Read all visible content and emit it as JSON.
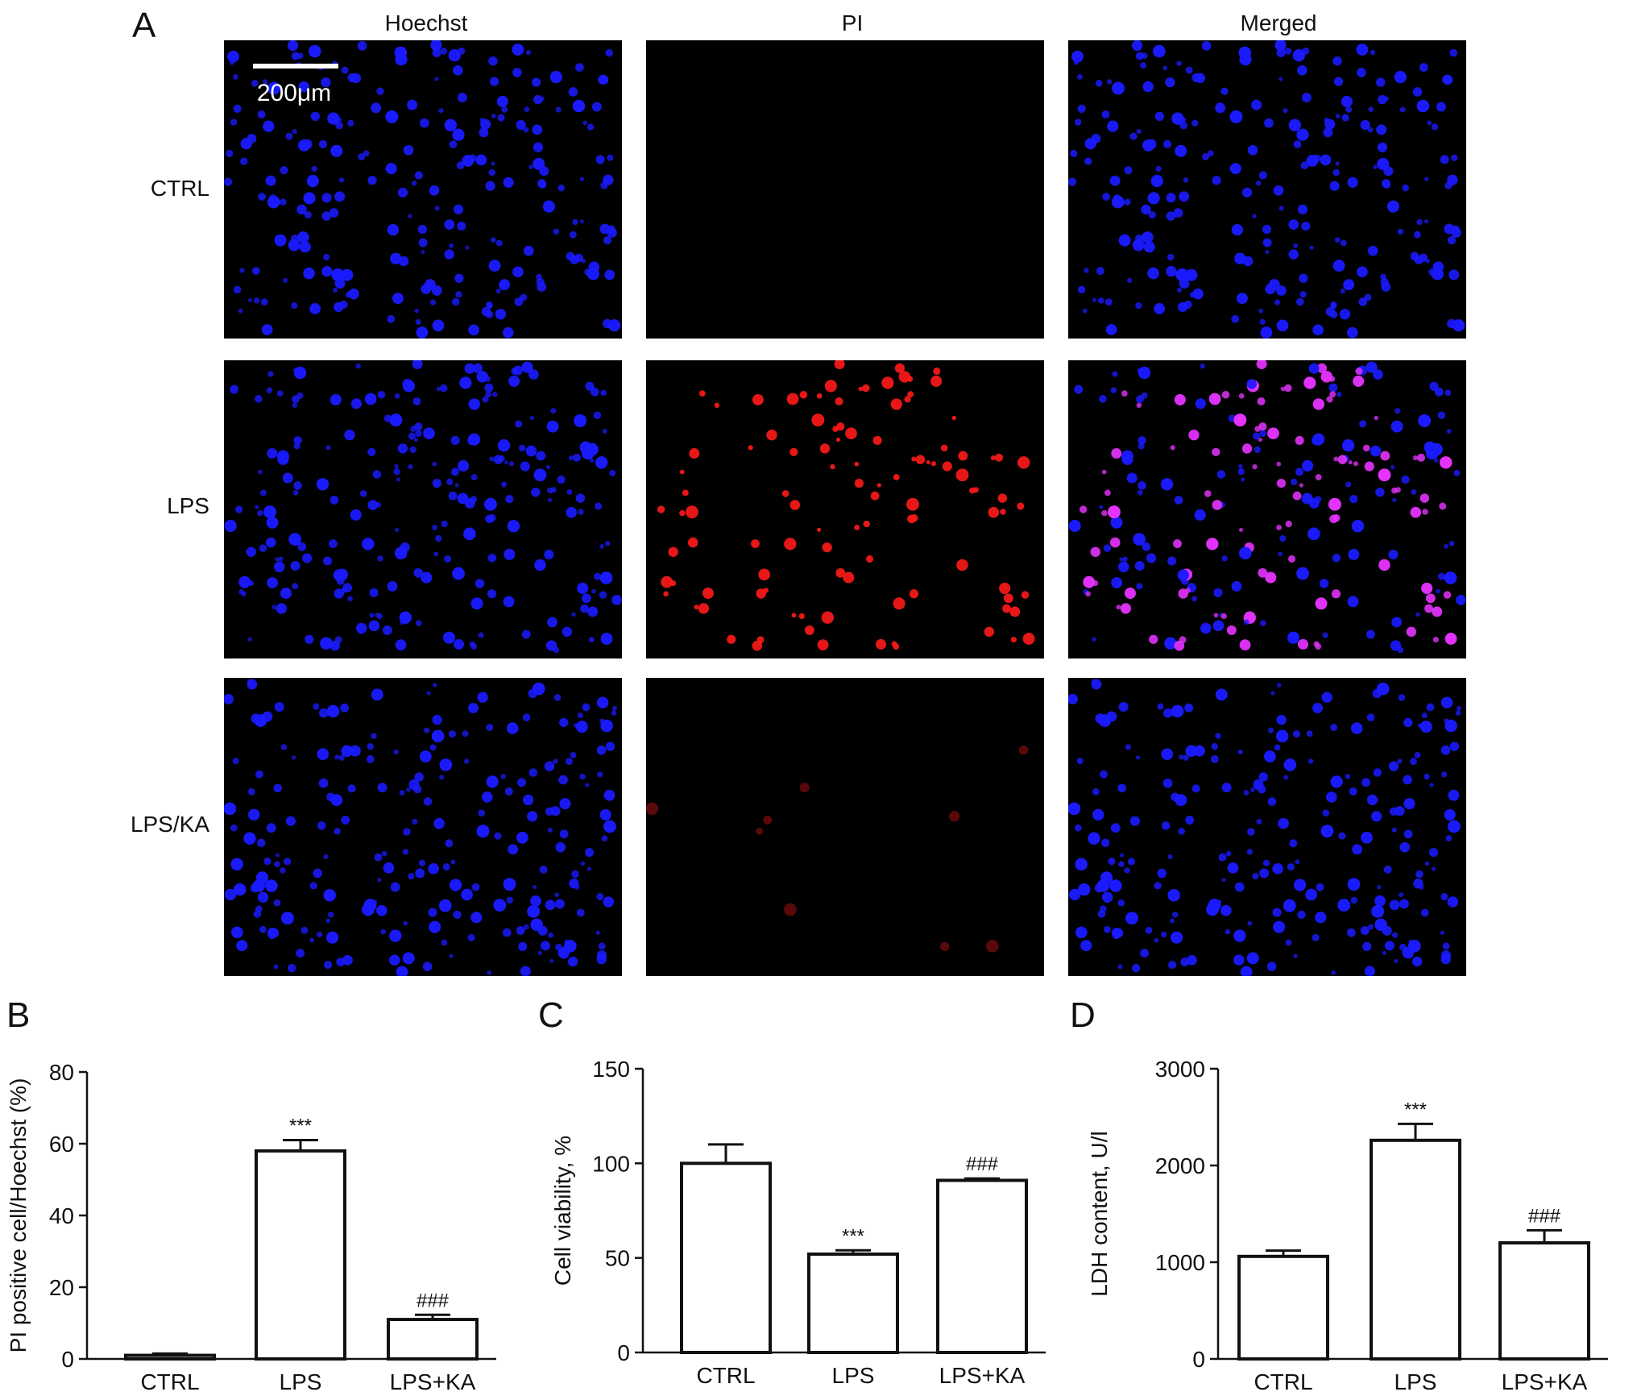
{
  "panel_a": {
    "letter": "A",
    "columns": [
      "Hoechst",
      "PI",
      "Merged"
    ],
    "rows": [
      "CTRL",
      "LPS",
      "LPS/KA"
    ],
    "scale_bar": "200μm",
    "colors": {
      "background": "#000000",
      "hoechst": "#1a1aff",
      "pi": "#ff1a1a",
      "merged_overlap": "#e633ff"
    },
    "pi_signal": {
      "CTRL": "none",
      "LPS": "high",
      "LPS/KA": "trace"
    }
  },
  "chart_data": [
    {
      "panel": "B",
      "type": "bar",
      "categories": [
        "CTRL",
        "LPS",
        "LPS+KA"
      ],
      "values": [
        1,
        58,
        11
      ],
      "errors": [
        0.5,
        3,
        1.3
      ],
      "annotations": [
        "",
        "***",
        "###"
      ],
      "ylabel": "PI positive cell/Hoechst (%)",
      "xlabel": "",
      "ylim": [
        0,
        80
      ],
      "yticks": [
        0,
        20,
        40,
        60,
        80
      ]
    },
    {
      "panel": "C",
      "type": "bar",
      "categories": [
        "CTRL",
        "LPS",
        "LPS+KA"
      ],
      "values": [
        100,
        52,
        91
      ],
      "errors": [
        10,
        2,
        1
      ],
      "annotations": [
        "",
        "***",
        "###"
      ],
      "ylabel": "Cell viability, %",
      "xlabel": "",
      "ylim": [
        0,
        150
      ],
      "yticks": [
        0,
        50,
        100,
        150
      ]
    },
    {
      "panel": "D",
      "type": "bar",
      "categories": [
        "CTRL",
        "LPS",
        "LPS+KA"
      ],
      "values": [
        1060,
        2260,
        1200
      ],
      "errors": [
        60,
        170,
        130
      ],
      "annotations": [
        "",
        "***",
        "###"
      ],
      "ylabel": "LDH content, U/l",
      "xlabel": "",
      "ylim": [
        0,
        3000
      ],
      "yticks": [
        0,
        1000,
        2000,
        3000
      ]
    }
  ]
}
